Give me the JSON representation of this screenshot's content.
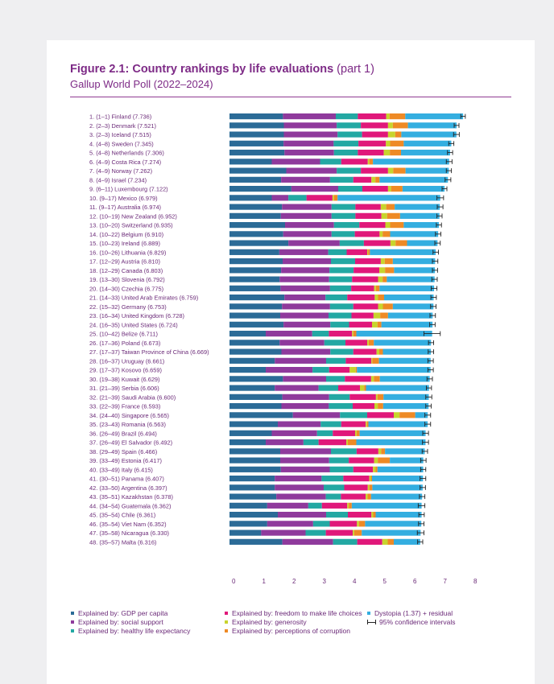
{
  "figure": {
    "title_bold": "Figure 2.1: Country rankings by life evaluations",
    "title_light": "(part 1)",
    "subtitle": "Gallup World Poll (2022–2024)"
  },
  "chart_data": {
    "type": "bar",
    "orientation": "horizontal",
    "stacked": true,
    "xlim": [
      0,
      8
    ],
    "x_ticks": [
      "0",
      "1",
      "2",
      "3",
      "4",
      "5",
      "6",
      "7",
      "8"
    ],
    "legend_position": "bottom",
    "grid": false,
    "series_colors": [
      "#2b6b97",
      "#8f3a9c",
      "#23a8a3",
      "#e0187a",
      "#c8d42d",
      "#ee8a25",
      "#34aee0"
    ],
    "series_names": [
      "Explained by: GDP per capita",
      "Explained by: social support",
      "Explained by: healthy life expectancy",
      "Explained by: freedom to make life choices",
      "Explained by: generosity",
      "Explained by: perceptions of corruption",
      "Dystopia (1.37) + residual"
    ],
    "ci_label": "95% confidence intervals",
    "rows": [
      {
        "label": "1.      (1–1) Finland (7.736)",
        "values": [
          1.77,
          1.75,
          0.73,
          0.94,
          0.11,
          0.52,
          1.916
        ],
        "ci": [
          7.66,
          7.81
        ]
      },
      {
        "label": "2.      (2–3) Denmark (7.521)",
        "values": [
          1.8,
          1.75,
          0.8,
          0.9,
          0.16,
          0.5,
          1.611
        ],
        "ci": [
          7.44,
          7.6
        ]
      },
      {
        "label": "3.      (2–3) Iceland (7.515)",
        "values": [
          1.8,
          1.78,
          0.81,
          0.86,
          0.24,
          0.2,
          1.825
        ],
        "ci": [
          7.42,
          7.61
        ]
      },
      {
        "label": "4.      (4–8) Sweden (7.345)",
        "values": [
          1.79,
          1.66,
          0.82,
          0.91,
          0.14,
          0.45,
          1.575
        ],
        "ci": [
          7.26,
          7.43
        ]
      },
      {
        "label": "5.      (4–8) Netherlands (7.306)",
        "values": [
          1.82,
          1.64,
          0.79,
          0.86,
          0.2,
          0.37,
          1.626
        ],
        "ci": [
          7.22,
          7.39
        ]
      },
      {
        "label": "6.      (4–9) Costa Rica (7.274)",
        "values": [
          1.4,
          1.6,
          0.7,
          0.88,
          0.05,
          0.12,
          2.524
        ],
        "ci": [
          7.18,
          7.37
        ]
      },
      {
        "label": "7.      (4–9) Norway (7.262)",
        "values": [
          1.88,
          1.67,
          0.8,
          0.9,
          0.17,
          0.41,
          1.432
        ],
        "ci": [
          7.18,
          7.35
        ]
      },
      {
        "label": "8.      (4–9) Israel (7.234)",
        "values": [
          1.71,
          1.62,
          0.77,
          0.6,
          0.13,
          0.14,
          2.264
        ],
        "ci": [
          7.14,
          7.33
        ]
      },
      {
        "label": "9.      (6–11) Luxembourg (7.122)",
        "values": [
          2.05,
          1.55,
          0.8,
          0.85,
          0.1,
          0.38,
          1.392
        ],
        "ci": [
          7.04,
          7.2
        ]
      },
      {
        "label": "10.    (9–17) Mexico (6.979)",
        "values": [
          1.4,
          0.55,
          0.6,
          0.86,
          0.05,
          0.12,
          3.399
        ],
        "ci": [
          6.87,
          7.09
        ]
      },
      {
        "label": "11.     (9–17) Australia (6.974)",
        "values": [
          1.74,
          1.64,
          0.79,
          0.84,
          0.18,
          0.28,
          1.494
        ],
        "ci": [
          6.88,
          7.07
        ]
      },
      {
        "label": "12.    (10–19) New Zealand (6.952)",
        "values": [
          1.7,
          1.68,
          0.79,
          0.86,
          0.19,
          0.43,
          1.302
        ],
        "ci": [
          6.87,
          7.04
        ]
      },
      {
        "label": "13.    (10–20) Switzerland (6.935)",
        "values": [
          1.84,
          1.62,
          0.84,
          0.86,
          0.16,
          0.45,
          1.165
        ],
        "ci": [
          6.85,
          7.02
        ]
      },
      {
        "label": "14.    (10–22) Belgium (6.910)",
        "values": [
          1.78,
          1.6,
          0.77,
          0.82,
          0.1,
          0.25,
          1.59
        ],
        "ci": [
          6.82,
          7.0
        ]
      },
      {
        "label": "15.    (10–23) Ireland (6.889)",
        "values": [
          1.95,
          1.7,
          0.8,
          0.88,
          0.17,
          0.38,
          1.009
        ],
        "ci": [
          6.8,
          6.98
        ]
      },
      {
        "label": "16.    (10–26) Lithuania (6.829)",
        "values": [
          1.65,
          1.62,
          0.61,
          0.68,
          0.03,
          0.06,
          2.179
        ],
        "ci": [
          6.74,
          6.92
        ]
      },
      {
        "label": "17.    (12–29) Austria (6.810)",
        "values": [
          1.76,
          1.6,
          0.8,
          0.85,
          0.13,
          0.27,
          1.4
        ],
        "ci": [
          6.72,
          6.9
        ]
      },
      {
        "label": "18.    (12–29) Canada (6.803)",
        "values": [
          1.71,
          1.6,
          0.8,
          0.85,
          0.19,
          0.3,
          1.353
        ],
        "ci": [
          6.72,
          6.89
        ]
      },
      {
        "label": "19.    (13–30) Slovenia (6.792)",
        "values": [
          1.66,
          1.64,
          0.76,
          0.86,
          0.15,
          0.14,
          1.582
        ],
        "ci": [
          6.7,
          6.88
        ]
      },
      {
        "label": "20.    (14–30) Czechia (6.775)",
        "values": [
          1.69,
          1.64,
          0.7,
          0.76,
          0.06,
          0.12,
          1.805
        ],
        "ci": [
          6.68,
          6.87
        ]
      },
      {
        "label": "21.    (14–33) United Arab Emirates (6.759)",
        "values": [
          1.82,
          1.36,
          0.72,
          0.91,
          0.11,
          0.2,
          1.639
        ],
        "ci": [
          6.67,
          6.85
        ]
      },
      {
        "label": "22.    (15–32) Germany (6.753)",
        "values": [
          1.74,
          1.59,
          0.77,
          0.82,
          0.16,
          0.33,
          1.343
        ],
        "ci": [
          6.66,
          6.84
        ]
      },
      {
        "label": "23.    (16–34) United Kingdom (6.728)",
        "values": [
          1.68,
          1.6,
          0.76,
          0.73,
          0.22,
          0.26,
          1.478
        ],
        "ci": [
          6.64,
          6.82
        ]
      },
      {
        "label": "24.    (16–35) United States (6.724)",
        "values": [
          1.79,
          1.55,
          0.62,
          0.76,
          0.18,
          0.13,
          1.694
        ],
        "ci": [
          6.63,
          6.81
        ]
      },
      {
        "label": "25.    (10–42) Belize (6.711)",
        "values": [
          1.2,
          1.54,
          0.55,
          0.77,
          0.04,
          0.1,
          2.511
        ],
        "ci": [
          6.44,
          6.98
        ]
      },
      {
        "label": "26.    (17–36) Poland (6.673)",
        "values": [
          1.66,
          1.48,
          0.7,
          0.72,
          0.05,
          0.17,
          1.893
        ],
        "ci": [
          6.59,
          6.76
        ]
      },
      {
        "label": "27.    (17–37) Taiwan Province of China (6.669)",
        "values": [
          1.72,
          1.62,
          0.76,
          0.77,
          0.09,
          0.12,
          1.589
        ],
        "ci": [
          6.58,
          6.76
        ]
      },
      {
        "label": "28.    (16–37) Uruguay (6.661)",
        "values": [
          1.5,
          1.7,
          0.65,
          0.85,
          0.03,
          0.22,
          1.711
        ],
        "ci": [
          6.57,
          6.75
        ]
      },
      {
        "label": "29.    (17–37) Kosovo (6.659)",
        "values": [
          1.2,
          1.55,
          0.55,
          0.68,
          0.2,
          0.04,
          2.439
        ],
        "ci": [
          6.57,
          6.75
        ]
      },
      {
        "label": "30.    (19–38) Kuwait (6.629)",
        "values": [
          1.77,
          1.43,
          0.62,
          0.87,
          0.09,
          0.2,
          1.649
        ],
        "ci": [
          6.54,
          6.72
        ]
      },
      {
        "label": "31.    (21–39) Serbia (6.606)",
        "values": [
          1.5,
          1.45,
          0.65,
          0.72,
          0.14,
          0.06,
          2.086
        ],
        "ci": [
          6.52,
          6.69
        ]
      },
      {
        "label": "32.    (21–39) Saudi Arabia (6.600)",
        "values": [
          1.75,
          1.55,
          0.68,
          0.87,
          0.05,
          0.2,
          1.5
        ],
        "ci": [
          6.5,
          6.7
        ]
      },
      {
        "label": "33.    (22–39) France (6.593)",
        "values": [
          1.72,
          1.57,
          0.79,
          0.72,
          0.11,
          0.18,
          1.503
        ],
        "ci": [
          6.5,
          6.68
        ]
      },
      {
        "label": "34.    (24–40) Singapore (6.565)",
        "values": [
          2.1,
          1.56,
          0.9,
          0.88,
          0.19,
          0.52,
          0.415
        ],
        "ci": [
          6.47,
          6.66
        ]
      },
      {
        "label": "35.    (23–43) Romania (6.563)",
        "values": [
          1.6,
          1.42,
          0.68,
          0.81,
          0.04,
          0.05,
          1.963
        ],
        "ci": [
          6.47,
          6.66
        ]
      },
      {
        "label": "36.    (26–49) Brazil (6.494)",
        "values": [
          1.4,
          1.5,
          0.52,
          0.74,
          0.05,
          0.1,
          2.184
        ],
        "ci": [
          6.4,
          6.59
        ]
      },
      {
        "label": "37.    (26–49) El Salvador (6.492)",
        "values": [
          1.2,
          1.25,
          0.5,
          0.92,
          0.05,
          0.28,
          2.292
        ],
        "ci": [
          6.39,
          6.59
        ]
      },
      {
        "label": "38.    (29–49) Spain (6.466)",
        "values": [
          1.68,
          1.68,
          0.85,
          0.72,
          0.09,
          0.13,
          1.316
        ],
        "ci": [
          6.38,
          6.56
        ]
      },
      {
        "label": "39.    (33–49) Estonia (6.417)",
        "values": [
          1.68,
          1.62,
          0.65,
          0.84,
          0.12,
          0.4,
          1.107
        ],
        "ci": [
          6.33,
          6.51
        ]
      },
      {
        "label": "40.    (33–49) Italy (6.415)",
        "values": [
          1.7,
          1.62,
          0.78,
          0.65,
          0.09,
          0.06,
          1.515
        ],
        "ci": [
          6.33,
          6.5
        ]
      },
      {
        "label": "41.    (30–51) Panama (6.407)",
        "values": [
          1.5,
          1.55,
          0.72,
          0.86,
          0.05,
          0.04,
          1.687
        ],
        "ci": [
          6.31,
          6.5
        ]
      },
      {
        "label": "42.    (33–50) Argentina (6.397)",
        "values": [
          1.5,
          1.62,
          0.68,
          0.78,
          0.05,
          0.1,
          1.667
        ],
        "ci": [
          6.31,
          6.49
        ]
      },
      {
        "label": "43.    (35–51) Kazakhstan (6.378)",
        "values": [
          1.55,
          1.64,
          0.5,
          0.82,
          0.06,
          0.12,
          1.688
        ],
        "ci": [
          6.29,
          6.47
        ]
      },
      {
        "label": "44.    (34–54) Guatemala (6.362)",
        "values": [
          1.25,
          1.36,
          0.45,
          0.84,
          0.05,
          0.1,
          2.312
        ],
        "ci": [
          6.25,
          6.47
        ]
      },
      {
        "label": "45.    (35–54) Chile (6.361)",
        "values": [
          1.6,
          1.6,
          0.72,
          0.78,
          0.06,
          0.08,
          1.521
        ],
        "ci": [
          6.27,
          6.45
        ]
      },
      {
        "label": "46.    (35–54) Viet Nam (6.352)",
        "values": [
          1.25,
          1.52,
          0.55,
          0.9,
          0.07,
          0.2,
          1.862
        ],
        "ci": [
          6.26,
          6.44
        ]
      },
      {
        "label": "47.    (35–58) Nicaragua (6.330)",
        "values": [
          1.05,
          1.47,
          0.67,
          0.89,
          0.05,
          0.25,
          1.95
        ],
        "ci": [
          6.22,
          6.44
        ]
      },
      {
        "label": "48.    (35–57) Malta (6.316)",
        "values": [
          1.75,
          1.68,
          0.8,
          0.83,
          0.18,
          0.2,
          0.876
        ],
        "ci": [
          6.23,
          6.4
        ]
      }
    ]
  }
}
